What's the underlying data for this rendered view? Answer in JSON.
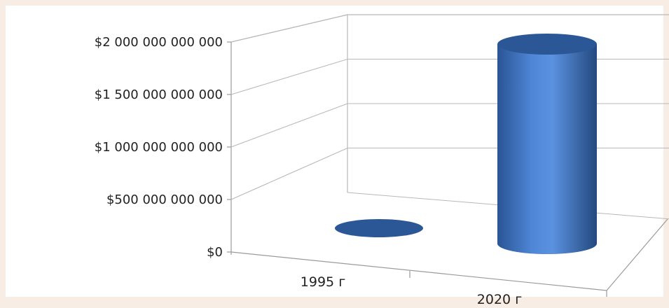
{
  "chart_data": {
    "type": "bar",
    "style": "3d-cylinder",
    "categories": [
      "1995 г",
      "2020 г"
    ],
    "values": [
      0,
      2000000000000
    ],
    "ylim": [
      0,
      2000000000000
    ],
    "yticks": [
      0,
      500000000000,
      1000000000000,
      1500000000000,
      2000000000000
    ],
    "ytick_labels": [
      "$0",
      "$500 000 000 000",
      "$1 000 000 000 000",
      "$1 500 000 000 000",
      "$2 000 000 000 000"
    ],
    "grid": true,
    "legend": "none",
    "colors": {
      "bar": "#3f6fc0",
      "bar_top": "#2c5797",
      "background": "#f8ede4",
      "grid": "#b8b8b8"
    }
  }
}
